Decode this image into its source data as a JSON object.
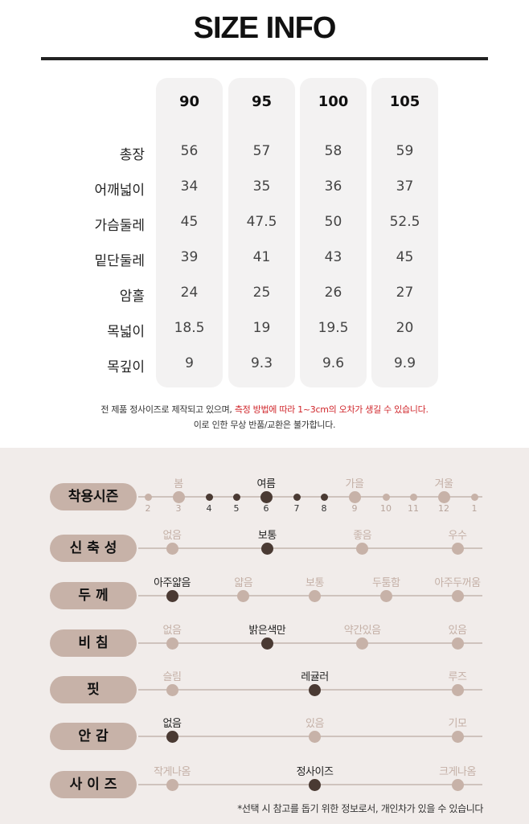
{
  "title": "SIZE INFO",
  "sizes": [
    "90",
    "95",
    "100",
    "105"
  ],
  "rows": [
    {
      "label": "총장",
      "values": [
        "56",
        "57",
        "58",
        "59"
      ]
    },
    {
      "label": "어깨넓이",
      "values": [
        "34",
        "35",
        "36",
        "37"
      ]
    },
    {
      "label": "가슴둘레",
      "values": [
        "45",
        "47.5",
        "50",
        "52.5"
      ]
    },
    {
      "label": "밑단둘레",
      "values": [
        "39",
        "41",
        "43",
        "45"
      ]
    },
    {
      "label": "암홀",
      "values": [
        "24",
        "25",
        "26",
        "27"
      ]
    },
    {
      "label": "목넓이",
      "values": [
        "18.5",
        "19",
        "19.5",
        "20"
      ]
    },
    {
      "label": "목깊이",
      "values": [
        "9",
        "9.3",
        "9.6",
        "9.9"
      ]
    }
  ],
  "note": {
    "line1_a": "전 제품 정사이즈로 제작되고 있으며, ",
    "line1_b": "측정 방법에 따라 1~3cm의 오차가 생길 수 있습니다.",
    "line2": "이로 인한 무상 반품/교환은 불가합니다."
  },
  "season": {
    "label": "착용시즌",
    "names": [
      "봄",
      "여름",
      "가을",
      "겨울"
    ],
    "months": [
      "2",
      "3",
      "4",
      "5",
      "6",
      "7",
      "8",
      "9",
      "10",
      "11",
      "12",
      "1"
    ],
    "selected_name": "여름",
    "selected_month": "6"
  },
  "attributes": [
    {
      "label": "신축성",
      "options": [
        "없음",
        "보통",
        "좋음",
        "우수"
      ],
      "selected": 1
    },
    {
      "label": "두께",
      "options": [
        "아주얇음",
        "얇음",
        "보통",
        "두툼함",
        "아주두꺼움"
      ],
      "selected": 0
    },
    {
      "label": "비침",
      "options": [
        "없음",
        "밝은색만",
        "약간있음",
        "있음"
      ],
      "selected": 1
    },
    {
      "label": "핏",
      "options": [
        "슬림",
        "레귤러",
        "루즈"
      ],
      "selected": 1
    },
    {
      "label": "안감",
      "options": [
        "없음",
        "있음",
        "기모"
      ],
      "selected": 0
    },
    {
      "label": "사이즈",
      "options": [
        "작게나옴",
        "정사이즈",
        "크게나옴"
      ],
      "selected": 1
    }
  ],
  "footnote": "*선택 시 참고를 돕기 위한 정보로서, 개인차가 있을 수 있습니다",
  "colors": {
    "accent": "#c7b2a8",
    "selected": "#4a3a33",
    "panel": "#f1ecea",
    "note_red": "#d0262b"
  }
}
